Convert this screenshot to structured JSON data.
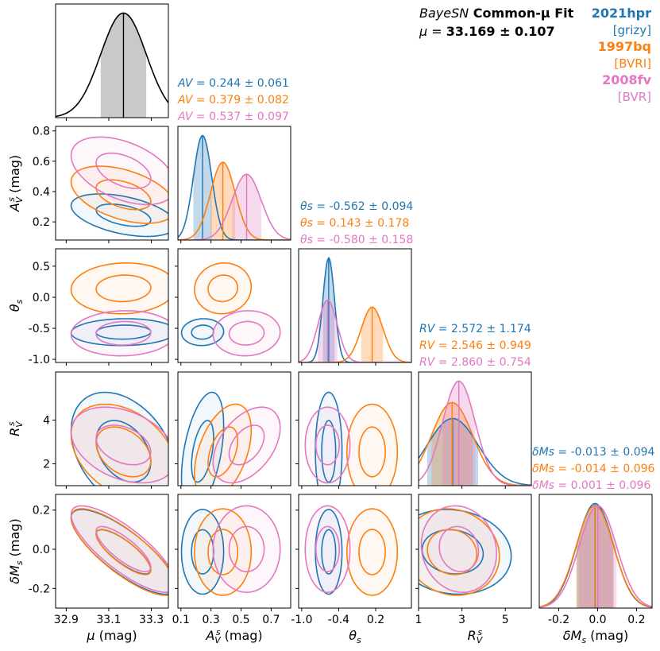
{
  "chart_data": {
    "type": "corner",
    "title": {
      "line1_italic": "BayeSN",
      "line1_bold": " Common-μ Fit",
      "line2_label": "μ = ",
      "line2_value": " 33.169 ± 0.107"
    },
    "legend": [
      {
        "name": "2021hpr",
        "bands": "[grizy]",
        "color": "#1f77b4"
      },
      {
        "name": "1997bq",
        "bands": "[BVRI]",
        "color": "#ff7f0e"
      },
      {
        "name": "2008fv",
        "bands": "[BVR]",
        "color": "#e377c2"
      }
    ],
    "parameters": [
      {
        "key": "mu",
        "label": "μ (mag)",
        "range": [
          32.85,
          33.38
        ],
        "ticks": [
          "32.9",
          "33.1",
          "33.3"
        ],
        "tick_values": [
          32.9,
          33.1,
          33.3
        ]
      },
      {
        "key": "av",
        "label": "A_V^s (mag)",
        "range": [
          0.08,
          0.83
        ],
        "ticks": [
          "0.1",
          "0.3",
          "0.5",
          "0.7"
        ],
        "tick_values": [
          0.1,
          0.3,
          0.5,
          0.7
        ],
        "y_ticks": [
          "0.2",
          "0.4",
          "0.6",
          "0.8"
        ],
        "y_tick_values": [
          0.2,
          0.4,
          0.6,
          0.8
        ]
      },
      {
        "key": "theta",
        "label": "θ_s",
        "range": [
          -1.05,
          0.78
        ],
        "ticks": [
          "-1.0",
          "-0.4",
          "0.2"
        ],
        "tick_values": [
          -1.0,
          -0.4,
          0.2
        ],
        "y_ticks": [
          "0.5",
          "0.0",
          "-0.5",
          "-1.0"
        ],
        "y_tick_values": [
          0.5,
          0.0,
          -0.5,
          -1.0
        ]
      },
      {
        "key": "rv",
        "label": "R_V^s",
        "range": [
          1.0,
          6.2
        ],
        "ticks": [
          "1",
          "3",
          "5"
        ],
        "tick_values": [
          1,
          3,
          5
        ],
        "y_ticks": [
          "2",
          "4"
        ],
        "y_tick_values": [
          2,
          4
        ]
      },
      {
        "key": "dm",
        "label": "δM_s (mag)",
        "range": [
          -0.3,
          0.28
        ],
        "ticks": [
          "-0.2",
          "0.0",
          "0.2"
        ],
        "tick_values": [
          -0.2,
          0.0,
          0.2
        ],
        "y_ticks": [
          "0.2",
          "0.0",
          "-0.2"
        ],
        "y_tick_values": [
          0.2,
          0.0,
          -0.2
        ]
      }
    ],
    "series": [
      {
        "name": "2021hpr",
        "color": "#1f77b4",
        "av": {
          "mean": 0.244,
          "sd": 0.061,
          "text": "0.244 ± 0.061"
        },
        "theta": {
          "mean": -0.562,
          "sd": 0.094,
          "text": "-0.562 ± 0.094"
        },
        "rv": {
          "mean": 2.572,
          "sd": 1.174,
          "text": "2.572 ± 1.174"
        },
        "dm": {
          "mean": -0.013,
          "sd": 0.094,
          "text": "-0.013 ± 0.094"
        }
      },
      {
        "name": "1997bq",
        "color": "#ff7f0e",
        "av": {
          "mean": 0.379,
          "sd": 0.082,
          "text": "0.379 ± 0.082"
        },
        "theta": {
          "mean": 0.143,
          "sd": 0.178,
          "text": "0.143 ± 0.178"
        },
        "rv": {
          "mean": 2.546,
          "sd": 0.949,
          "text": "2.546 ± 0.949"
        },
        "dm": {
          "mean": -0.014,
          "sd": 0.096,
          "text": "-0.014 ± 0.096"
        }
      },
      {
        "name": "2008fv",
        "color": "#e377c2",
        "av": {
          "mean": 0.537,
          "sd": 0.097,
          "text": "0.537 ± 0.097"
        },
        "theta": {
          "mean": -0.58,
          "sd": 0.158,
          "text": "-0.580 ± 0.158"
        },
        "rv": {
          "mean": 2.86,
          "sd": 0.754,
          "text": "2.860 ± 0.754"
        },
        "dm": {
          "mean": 0.001,
          "sd": 0.096,
          "text": "0.001 ± 0.096"
        }
      }
    ],
    "mu_common": {
      "mean": 33.169,
      "sd": 0.107,
      "text": "33.169 ± 0.107"
    },
    "stat_labels": {
      "av": "A_V^s = ",
      "theta": "θ_s = ",
      "rv": "R_V^s = ",
      "dm": "δM_s = "
    }
  }
}
